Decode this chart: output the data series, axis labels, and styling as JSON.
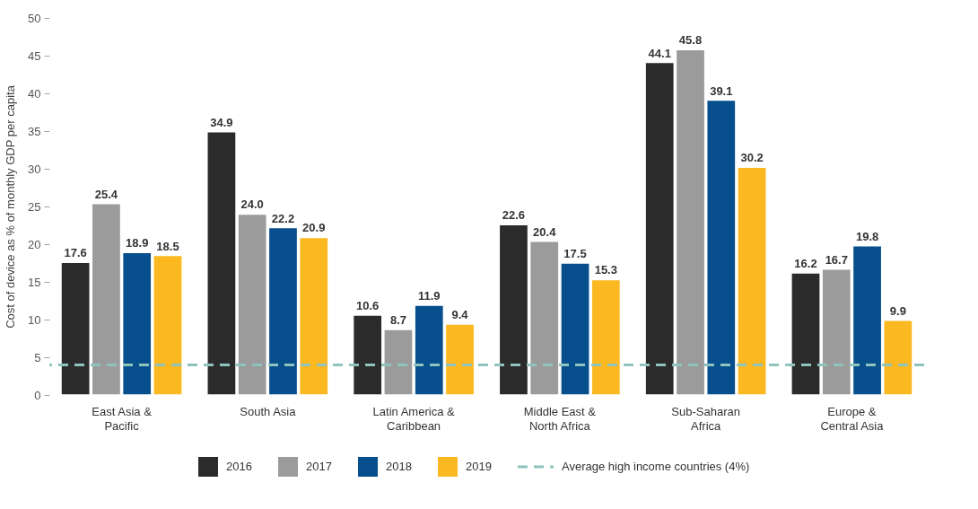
{
  "chart_data": {
    "type": "bar",
    "ylabel": "Cost of device as % of monthly GDP per capita",
    "categories": [
      "East Asia & Pacific",
      "South Asia",
      "Latin America & Caribbean",
      "Middle East & North Africa",
      "Sub-Saharan Africa",
      "Europe & Central Asia"
    ],
    "series": [
      {
        "name": "2016",
        "color": "#2b2b2b",
        "values": [
          17.6,
          34.9,
          10.6,
          22.6,
          44.1,
          16.2
        ],
        "value_labels": [
          "17.6",
          "34.9",
          "10.6",
          "22.6",
          "44.1",
          "16.2"
        ]
      },
      {
        "name": "2017",
        "color": "#9b9b9b",
        "values": [
          25.4,
          24.0,
          8.7,
          20.4,
          45.8,
          16.7
        ],
        "value_labels": [
          "25.4",
          "24.0",
          "8.7",
          "20.4",
          "45.8",
          "16.7"
        ]
      },
      {
        "name": "2018",
        "color": "#064f8c",
        "values": [
          18.9,
          22.2,
          11.9,
          17.5,
          39.1,
          19.8
        ],
        "value_labels": [
          "18.9",
          "22.2",
          "11.9",
          "17.5",
          "39.1",
          "19.8"
        ]
      },
      {
        "name": "2019",
        "color": "#fbb820",
        "values": [
          18.5,
          20.9,
          9.4,
          15.3,
          30.2,
          9.9
        ],
        "value_labels": [
          "18.5",
          "20.9",
          "9.4",
          "15.3",
          "30.2",
          "9.9"
        ]
      }
    ],
    "ylim": [
      0,
      50
    ],
    "yticks": [
      0,
      5,
      10,
      15,
      20,
      25,
      30,
      35,
      40,
      45,
      50
    ],
    "grid": false,
    "legend": "bottom",
    "ref_lines": [
      {
        "axis": "y",
        "value": 4,
        "label": "Average high income countries (4%)",
        "color": "#8ec3be",
        "line_style": "dashed"
      }
    ]
  }
}
